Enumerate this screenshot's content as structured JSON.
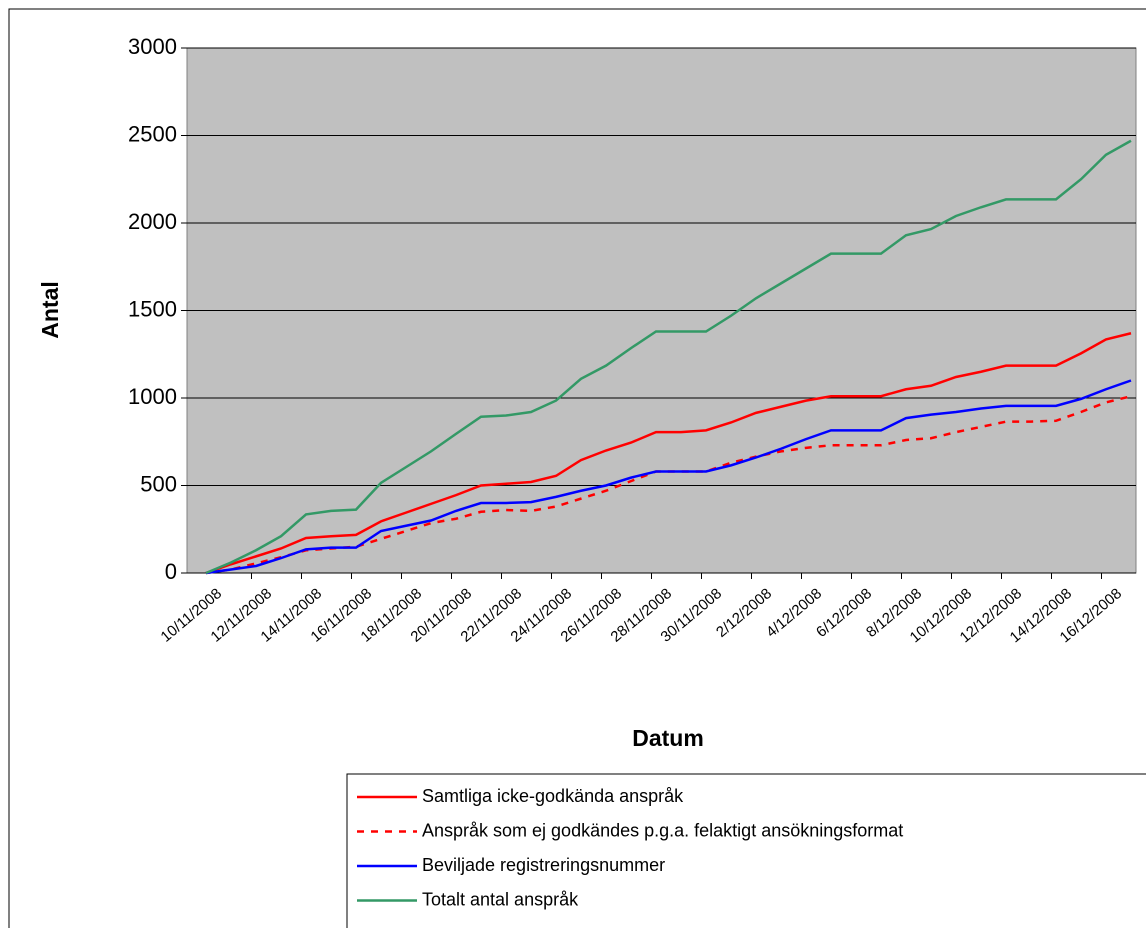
{
  "chart_data": {
    "type": "line",
    "x_label": "Datum",
    "y_label": "Antal",
    "categories": [
      "10/11/2008",
      null,
      "12/11/2008",
      null,
      "14/11/2008",
      null,
      "16/11/2008",
      null,
      "18/11/2008",
      null,
      "20/11/2008",
      null,
      "22/11/2008",
      null,
      "24/11/2008",
      null,
      "26/11/2008",
      null,
      "28/11/2008",
      null,
      "30/11/2008",
      null,
      "2/12/2008",
      null,
      "4/12/2008",
      null,
      "6/12/2008",
      null,
      "8/12/2008",
      null,
      "10/12/2008",
      null,
      "12/12/2008",
      null,
      "14/12/2008",
      null,
      "16/12/2008",
      null
    ],
    "ylim": [
      0,
      3000
    ],
    "yticks": [
      0,
      500,
      1000,
      1500,
      2000,
      2500,
      3000
    ],
    "grid": true,
    "legend": "bottom",
    "series": [
      {
        "name": "Samtliga icke-godkända anspråk",
        "color": "#ff0000",
        "dashed": false,
        "values": [
          0,
          50,
          95,
          140,
          200,
          210,
          218,
          295,
          345,
          395,
          445,
          500,
          510,
          520,
          555,
          645,
          700,
          745,
          805,
          805,
          815,
          860,
          915,
          950,
          985,
          1010,
          1010,
          1010,
          1050,
          1070,
          1120,
          1150,
          1185,
          1185,
          1185,
          1255,
          1335,
          1370
        ]
      },
      {
        "name": "Anspråk som ej godkändes p.g.a. felaktigt ansökningsformat",
        "color": "#ff0000",
        "dashed": true,
        "values": [
          0,
          20,
          55,
          90,
          130,
          140,
          150,
          195,
          240,
          285,
          310,
          350,
          360,
          355,
          380,
          425,
          470,
          525,
          580,
          580,
          580,
          630,
          665,
          695,
          715,
          730,
          730,
          730,
          760,
          770,
          805,
          835,
          865,
          865,
          870,
          920,
          975,
          1010
        ]
      },
      {
        "name": "Beviljade registreringsnummer",
        "color": "#0000ff",
        "dashed": false,
        "values": [
          0,
          20,
          40,
          85,
          135,
          145,
          145,
          240,
          270,
          300,
          355,
          400,
          400,
          405,
          435,
          470,
          500,
          545,
          580,
          580,
          580,
          615,
          660,
          710,
          765,
          815,
          815,
          815,
          885,
          905,
          920,
          940,
          955,
          955,
          955,
          995,
          1050,
          1100
        ]
      },
      {
        "name": "Totalt antal anspråk",
        "color": "#339966",
        "dashed": false,
        "values": [
          0,
          60,
          130,
          210,
          335,
          355,
          362,
          515,
          605,
          695,
          795,
          893,
          900,
          920,
          985,
          1110,
          1185,
          1285,
          1380,
          1380,
          1380,
          1470,
          1570,
          1655,
          1740,
          1825,
          1825,
          1825,
          1930,
          1965,
          2040,
          2090,
          2135,
          2135,
          2135,
          2250,
          2390,
          2470
        ]
      }
    ]
  }
}
